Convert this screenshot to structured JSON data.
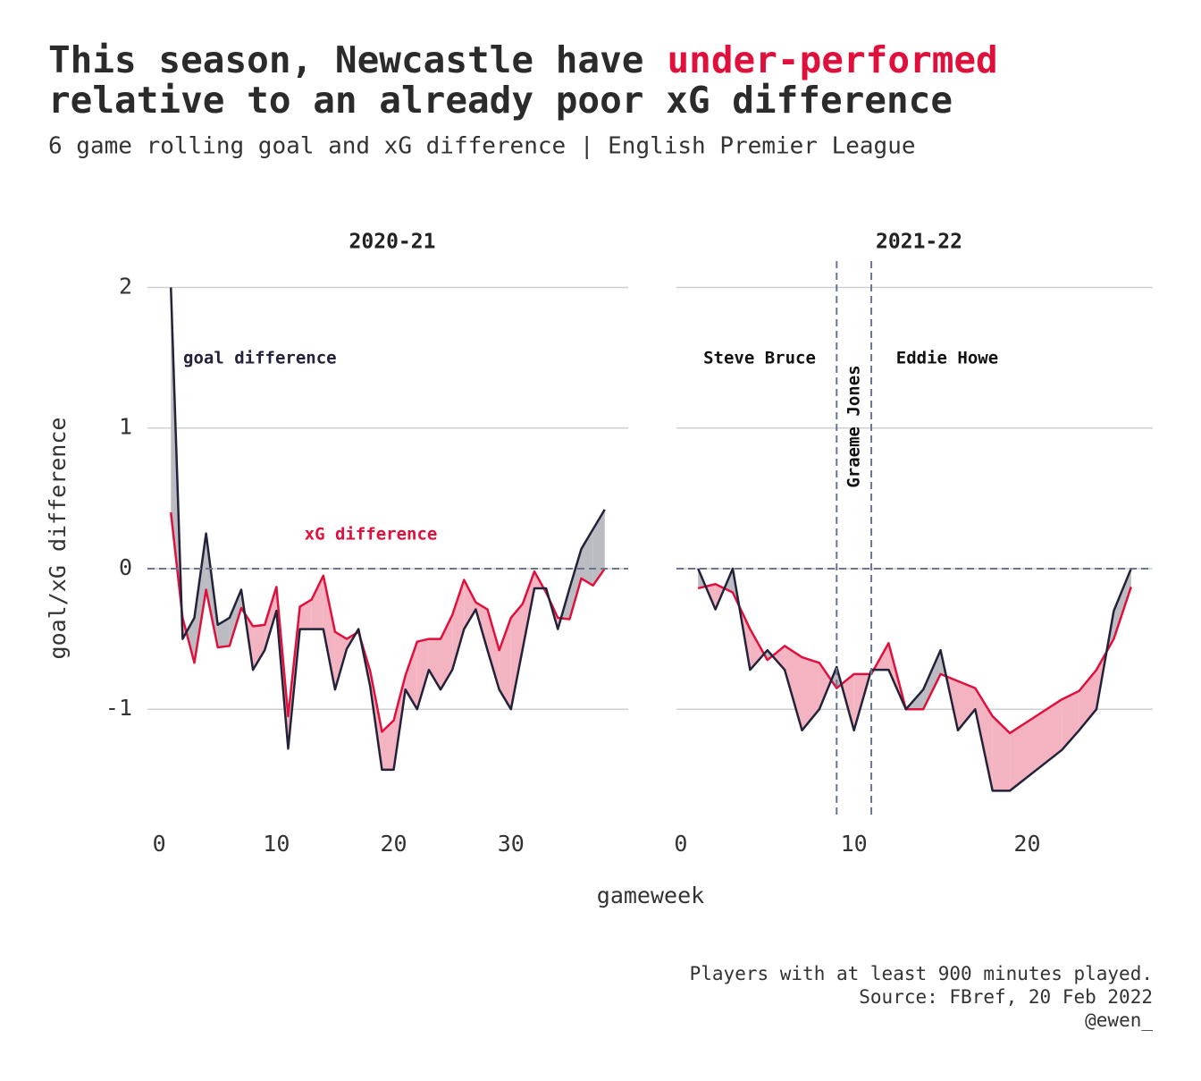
{
  "title": [
    "This season, Newcastle have",
    "under-performed",
    "relative to an already poor xG difference"
  ],
  "subtitle": "6 game rolling goal and xG difference | English Premier League",
  "y_label": "goal/xG difference",
  "x_label": "gameweek",
  "caption": [
    "Players with at least 900 minutes played.",
    "Source: FBref, 20 Feb 2022",
    "@ewen_"
  ],
  "chart_data": [
    {
      "type": "line",
      "title": "2020-21",
      "x": [
        1,
        2,
        3,
        4,
        5,
        6,
        7,
        8,
        9,
        10,
        11,
        12,
        13,
        14,
        15,
        16,
        17,
        18,
        19,
        20,
        21,
        22,
        23,
        24,
        25,
        26,
        27,
        28,
        29,
        30,
        31,
        32,
        33,
        34,
        35,
        36,
        37,
        38
      ],
      "series": [
        {
          "name": "goal difference",
          "color": "#22223a",
          "values": [
            2.0,
            -0.5,
            -0.35,
            0.25,
            -0.4,
            -0.35,
            -0.15,
            -0.72,
            -0.58,
            -0.3,
            -1.28,
            -0.43,
            -0.43,
            -0.43,
            -0.86,
            -0.57,
            -0.43,
            -0.84,
            -1.43,
            -1.43,
            -0.86,
            -1.0,
            -0.72,
            -0.86,
            -0.72,
            -0.43,
            -0.29,
            -0.58,
            -0.86,
            -1.0,
            -0.57,
            -0.14,
            -0.14,
            -0.43,
            -0.14,
            0.14,
            0.28,
            0.42
          ]
        },
        {
          "name": "xG difference",
          "color": "#e0103d",
          "values": [
            0.4,
            -0.35,
            -0.67,
            -0.15,
            -0.56,
            -0.55,
            -0.28,
            -0.41,
            -0.4,
            -0.13,
            -1.05,
            -0.27,
            -0.22,
            -0.05,
            -0.45,
            -0.5,
            -0.45,
            -0.73,
            -1.16,
            -1.08,
            -0.76,
            -0.52,
            -0.5,
            -0.5,
            -0.33,
            -0.08,
            -0.24,
            -0.29,
            -0.58,
            -0.35,
            -0.25,
            -0.02,
            -0.17,
            -0.35,
            -0.36,
            -0.07,
            -0.12,
            0.0
          ]
        }
      ],
      "xlim": [
        -1,
        40
      ],
      "xticks": [
        0,
        10,
        20,
        30
      ],
      "ylim": [
        -1.8,
        2.2
      ],
      "yticks": [
        -1,
        0,
        1,
        2
      ],
      "show_ytick_labels": true,
      "grid": true,
      "zero_line": true,
      "fill_colors": {
        "above": "#bbbcc2",
        "below": "#f4b3c0"
      }
    },
    {
      "type": "line",
      "title": "2021-22",
      "x": [
        1,
        2,
        3,
        4,
        5,
        6,
        7,
        8,
        9,
        10,
        11,
        12,
        13,
        14,
        15,
        16,
        17,
        18,
        19,
        22,
        23,
        24,
        25,
        26
      ],
      "series": [
        {
          "color": "#22223a",
          "values": [
            0,
            -0.29,
            0,
            -0.72,
            -0.58,
            -0.72,
            -1.15,
            -1.0,
            -0.7,
            -1.15,
            -0.72,
            -0.72,
            -1.0,
            -0.86,
            -0.58,
            -1.15,
            -1.0,
            -1.58,
            -1.58,
            -1.29,
            -1.15,
            -1.0,
            -0.3,
            0.0
          ]
        },
        {
          "color": "#e0103d",
          "values": [
            -0.14,
            -0.11,
            -0.17,
            -0.43,
            -0.65,
            -0.55,
            -0.63,
            -0.67,
            -0.85,
            -0.75,
            -0.75,
            -0.53,
            -1.0,
            -1.0,
            -0.75,
            -0.8,
            -0.85,
            -1.05,
            -1.17,
            -0.93,
            -0.87,
            -0.72,
            -0.5,
            -0.13
          ]
        }
      ],
      "xlim": [
        -0.25,
        27.25
      ],
      "xticks": [
        0,
        10,
        20
      ],
      "ylim": [
        -1.8,
        2.2
      ],
      "yticks": [
        -1,
        0,
        1,
        2
      ],
      "show_ytick_labels": false,
      "grid": true,
      "zero_line": true,
      "fill_colors": {
        "above": "#bbbcc2",
        "below": "#f4b3c0"
      },
      "vlines": [
        9,
        11
      ],
      "annotations": [
        "Steve Bruce",
        "Graeme Jones",
        "Eddie Howe"
      ]
    }
  ]
}
